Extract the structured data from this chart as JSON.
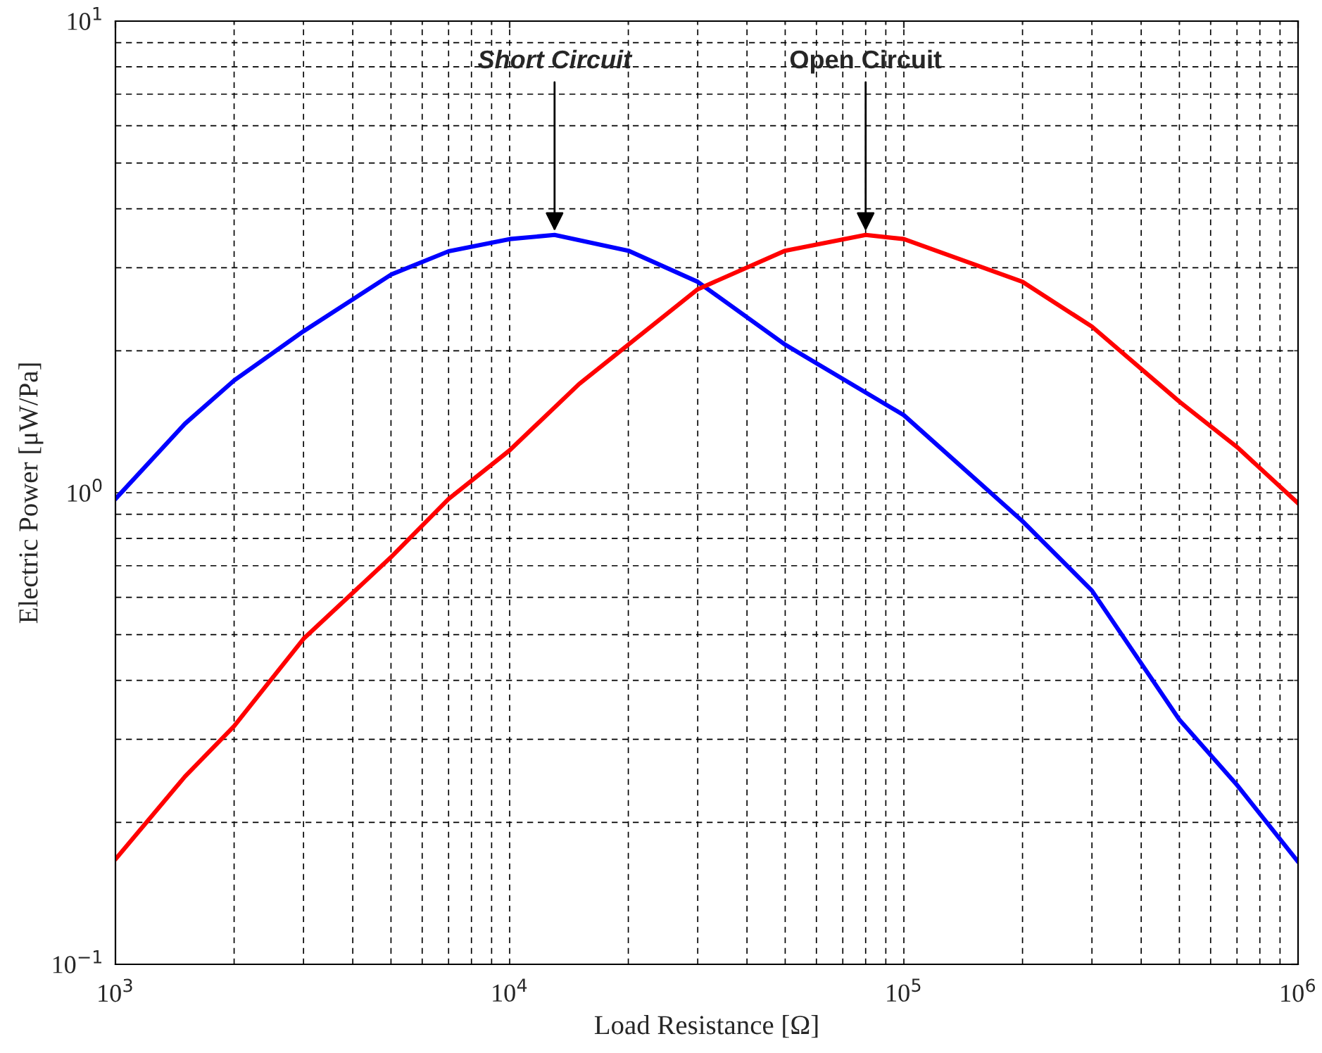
{
  "chart_data": {
    "type": "line",
    "xlabel": "Load Resistance [Ω]",
    "ylabel": "Electric Power [μW/Pa]",
    "log": "xy",
    "grid": true,
    "marker": "none",
    "line_style": "solid",
    "xlim": [
      1000,
      1000000
    ],
    "ylim": [
      0.1,
      10
    ],
    "xticks": [
      {
        "value": 1000,
        "label": "10$^{3}$"
      },
      {
        "value": 10000,
        "label": "10$^{4}$"
      },
      {
        "value": 100000,
        "label": "10$^{5}$"
      },
      {
        "value": 1000000,
        "label": "10$^{6}$"
      }
    ],
    "yticks": [
      {
        "value": 0.1,
        "label": "10$^{−1}$"
      },
      {
        "value": 1,
        "label": "10$^{0}$"
      },
      {
        "value": 10,
        "label": "10$^{1}$"
      }
    ],
    "series": [
      {
        "color": "#0000ff",
        "x": [
          1000,
          1500,
          2000,
          3000,
          5000,
          7000,
          10000,
          13000,
          20000,
          30000,
          50000,
          100000,
          200000,
          300000,
          500000,
          700000,
          1000000
        ],
        "values": [
          0.97,
          1.4,
          1.73,
          2.2,
          2.9,
          3.25,
          3.45,
          3.52,
          3.26,
          2.8,
          2.06,
          1.46,
          0.87,
          0.62,
          0.33,
          0.24,
          0.165
        ]
      },
      {
        "color": "#ff0000",
        "x": [
          1000,
          1500,
          2000,
          3000,
          5000,
          7000,
          10000,
          15000,
          20000,
          30000,
          50000,
          80000,
          100000,
          200000,
          300000,
          500000,
          700000,
          1000000
        ],
        "values": [
          0.167,
          0.25,
          0.32,
          0.49,
          0.73,
          0.97,
          1.23,
          1.7,
          2.06,
          2.7,
          3.26,
          3.52,
          3.45,
          2.8,
          2.25,
          1.56,
          1.25,
          0.95
        ]
      }
    ],
    "annotations": [
      {
        "text": "Short Circuit",
        "x": 13000,
        "y": 3.52
      },
      {
        "text": "Open Circuit",
        "x": 80000,
        "y": 3.52
      }
    ]
  }
}
